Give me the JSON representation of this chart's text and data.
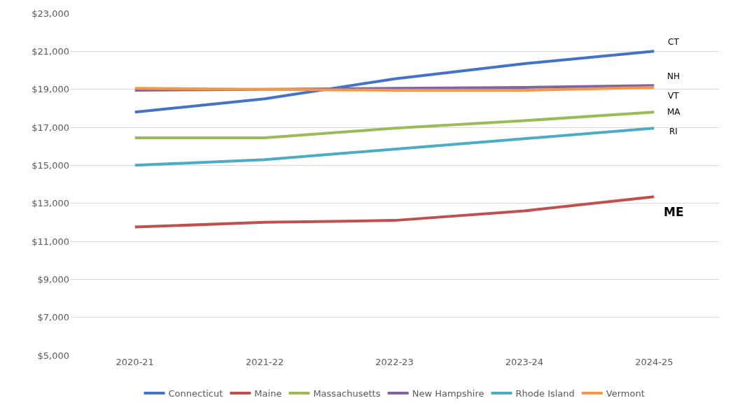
{
  "chart_data": {
    "type": "line",
    "categories": [
      "2020-21",
      "2021-22",
      "2022-23",
      "2023-24",
      "2024-25"
    ],
    "series": [
      {
        "name": "Connecticut",
        "color": "#4472c4",
        "values": [
          17800,
          18500,
          19550,
          20350,
          21000
        ]
      },
      {
        "name": "Maine",
        "color": "#c0504d",
        "values": [
          11750,
          12000,
          12100,
          12600,
          13350
        ]
      },
      {
        "name": "Massachusetts",
        "color": "#9bbb59",
        "values": [
          16450,
          16450,
          16950,
          17350,
          17800
        ]
      },
      {
        "name": "New Hampshire",
        "color": "#8064a2",
        "values": [
          18950,
          19000,
          19050,
          19100,
          19200
        ]
      },
      {
        "name": "Rhode Island",
        "color": "#4bacc6",
        "values": [
          15000,
          15300,
          15850,
          16400,
          16950
        ]
      },
      {
        "name": "Vermont",
        "color": "#f79646",
        "values": [
          19050,
          19000,
          18950,
          18950,
          19100
        ]
      }
    ],
    "ylim": [
      5000,
      23000
    ],
    "yticks": [
      {
        "value": 5000,
        "label": "$5,000"
      },
      {
        "value": 7000,
        "label": "$7,000"
      },
      {
        "value": 9000,
        "label": "$9,000"
      },
      {
        "value": 11000,
        "label": "$11,000"
      },
      {
        "value": 13000,
        "label": "$13,000"
      },
      {
        "value": 15000,
        "label": "$15,000"
      },
      {
        "value": 17000,
        "label": "$17,000"
      },
      {
        "value": 19000,
        "label": "$19,000"
      },
      {
        "value": 21000,
        "label": "$21,000"
      },
      {
        "value": 23000,
        "label": "$23,000"
      }
    ],
    "annotations": [
      {
        "text": "CT",
        "x": "2024-25",
        "y": 21000
      },
      {
        "text": "NH",
        "x": "2024-25",
        "y": 19200
      },
      {
        "text": "VT",
        "x": "2024-25",
        "y": 19100
      },
      {
        "text": "MA",
        "x": "2024-25",
        "y": 17800
      },
      {
        "text": "RI",
        "x": "2024-25",
        "y": 16950
      },
      {
        "text": "ME",
        "x": "2024-25",
        "y": 13350
      }
    ],
    "grid": "y",
    "legend": "bottom",
    "marker": "none",
    "line_style": "solid"
  }
}
